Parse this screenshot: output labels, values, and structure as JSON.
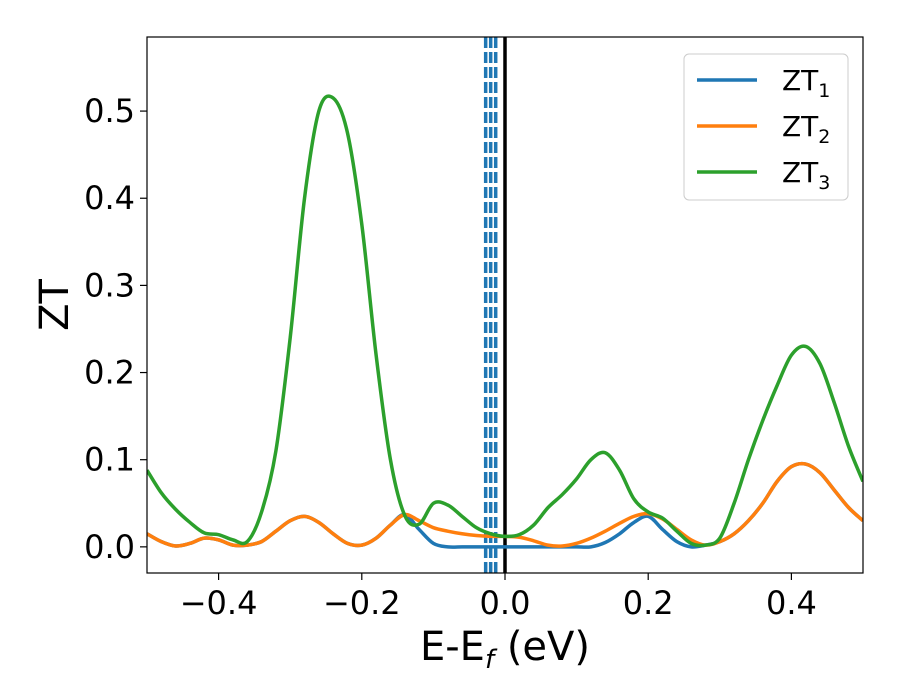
{
  "chart_data": {
    "type": "line",
    "xlabel_main": "E-E",
    "xlabel_sub": "f",
    "xlabel_unit": " (eV)",
    "ylabel": "ZT",
    "xlim": [
      -0.5,
      0.5
    ],
    "ylim": [
      -0.03,
      0.585
    ],
    "xticks": [
      {
        "value": -0.4,
        "label": "−0.4"
      },
      {
        "value": -0.2,
        "label": "−0.2"
      },
      {
        "value": 0.0,
        "label": "0.0"
      },
      {
        "value": 0.2,
        "label": "0.2"
      },
      {
        "value": 0.4,
        "label": "0.4"
      }
    ],
    "yticks": [
      {
        "value": 0.0,
        "label": "0.0"
      },
      {
        "value": 0.1,
        "label": "0.1"
      },
      {
        "value": 0.2,
        "label": "0.2"
      },
      {
        "value": 0.3,
        "label": "0.3"
      },
      {
        "value": 0.4,
        "label": "0.4"
      },
      {
        "value": 0.5,
        "label": "0.5"
      }
    ],
    "grid": false,
    "legend_position": "top-right",
    "vertical_lines": [
      {
        "x": 0.0,
        "color": "#000000",
        "style": "solid"
      },
      {
        "x": -0.027,
        "color": "#1f77b4",
        "style": "dashed"
      },
      {
        "x": -0.02,
        "color": "#1f77b4",
        "style": "dashed"
      },
      {
        "x": -0.013,
        "color": "#1f77b4",
        "style": "dashed"
      }
    ],
    "series": [
      {
        "name": "ZT",
        "sub": "1",
        "color": "#1f77b4",
        "x": [
          -0.5,
          -0.48,
          -0.46,
          -0.44,
          -0.42,
          -0.4,
          -0.38,
          -0.36,
          -0.34,
          -0.32,
          -0.3,
          -0.28,
          -0.26,
          -0.24,
          -0.22,
          -0.2,
          -0.18,
          -0.16,
          -0.14,
          -0.12,
          -0.1,
          -0.08,
          -0.06,
          -0.04,
          -0.02,
          0.0,
          0.02,
          0.04,
          0.06,
          0.08,
          0.1,
          0.12,
          0.14,
          0.16,
          0.18,
          0.2,
          0.22,
          0.24,
          0.26,
          0.28,
          0.3,
          0.32,
          0.34,
          0.36,
          0.38,
          0.4,
          0.42,
          0.44,
          0.46,
          0.48,
          0.5
        ],
        "y": [
          0.015,
          0.006,
          0.001,
          0.004,
          0.01,
          0.008,
          0.002,
          0.002,
          0.006,
          0.018,
          0.03,
          0.035,
          0.028,
          0.015,
          0.004,
          0.002,
          0.01,
          0.025,
          0.037,
          0.02,
          0.004,
          0.0,
          0.0,
          0.0,
          0.0,
          0.0,
          0.0,
          0.0,
          0.0,
          0.0,
          0.0,
          0.0,
          0.005,
          0.015,
          0.028,
          0.035,
          0.02,
          0.006,
          0.0,
          0.002,
          0.006,
          0.015,
          0.03,
          0.05,
          0.075,
          0.092,
          0.095,
          0.085,
          0.065,
          0.045,
          0.03
        ]
      },
      {
        "name": "ZT",
        "sub": "2",
        "color": "#ff7f0e",
        "x": [
          -0.5,
          -0.48,
          -0.46,
          -0.44,
          -0.42,
          -0.4,
          -0.38,
          -0.36,
          -0.34,
          -0.32,
          -0.3,
          -0.28,
          -0.26,
          -0.24,
          -0.22,
          -0.2,
          -0.18,
          -0.16,
          -0.14,
          -0.12,
          -0.1,
          -0.08,
          -0.06,
          -0.04,
          -0.02,
          0.0,
          0.02,
          0.04,
          0.06,
          0.08,
          0.1,
          0.12,
          0.14,
          0.16,
          0.18,
          0.2,
          0.22,
          0.24,
          0.26,
          0.28,
          0.3,
          0.32,
          0.34,
          0.36,
          0.38,
          0.4,
          0.42,
          0.44,
          0.46,
          0.48,
          0.5
        ],
        "y": [
          0.015,
          0.006,
          0.001,
          0.004,
          0.01,
          0.008,
          0.002,
          0.002,
          0.006,
          0.018,
          0.03,
          0.035,
          0.028,
          0.015,
          0.004,
          0.002,
          0.01,
          0.025,
          0.037,
          0.03,
          0.022,
          0.018,
          0.015,
          0.013,
          0.012,
          0.012,
          0.011,
          0.007,
          0.002,
          0.001,
          0.004,
          0.01,
          0.018,
          0.027,
          0.035,
          0.038,
          0.032,
          0.02,
          0.008,
          0.002,
          0.006,
          0.015,
          0.03,
          0.05,
          0.075,
          0.092,
          0.095,
          0.085,
          0.065,
          0.045,
          0.03
        ]
      },
      {
        "name": "ZT",
        "sub": "3",
        "color": "#2ca02c",
        "x": [
          -0.5,
          -0.48,
          -0.46,
          -0.44,
          -0.42,
          -0.4,
          -0.38,
          -0.36,
          -0.34,
          -0.32,
          -0.3,
          -0.28,
          -0.26,
          -0.24,
          -0.22,
          -0.2,
          -0.18,
          -0.16,
          -0.14,
          -0.12,
          -0.1,
          -0.08,
          -0.06,
          -0.04,
          -0.02,
          0.0,
          0.02,
          0.04,
          0.06,
          0.08,
          0.1,
          0.12,
          0.14,
          0.16,
          0.18,
          0.2,
          0.22,
          0.24,
          0.26,
          0.28,
          0.3,
          0.32,
          0.34,
          0.36,
          0.38,
          0.4,
          0.42,
          0.44,
          0.46,
          0.48,
          0.5
        ],
        "y": [
          0.088,
          0.062,
          0.043,
          0.028,
          0.016,
          0.014,
          0.008,
          0.006,
          0.04,
          0.11,
          0.24,
          0.4,
          0.5,
          0.515,
          0.475,
          0.37,
          0.22,
          0.1,
          0.036,
          0.026,
          0.05,
          0.048,
          0.035,
          0.022,
          0.015,
          0.012,
          0.014,
          0.025,
          0.045,
          0.06,
          0.078,
          0.1,
          0.108,
          0.088,
          0.055,
          0.04,
          0.033,
          0.018,
          0.004,
          0.002,
          0.01,
          0.05,
          0.1,
          0.145,
          0.185,
          0.22,
          0.23,
          0.21,
          0.165,
          0.115,
          0.075
        ]
      }
    ]
  }
}
